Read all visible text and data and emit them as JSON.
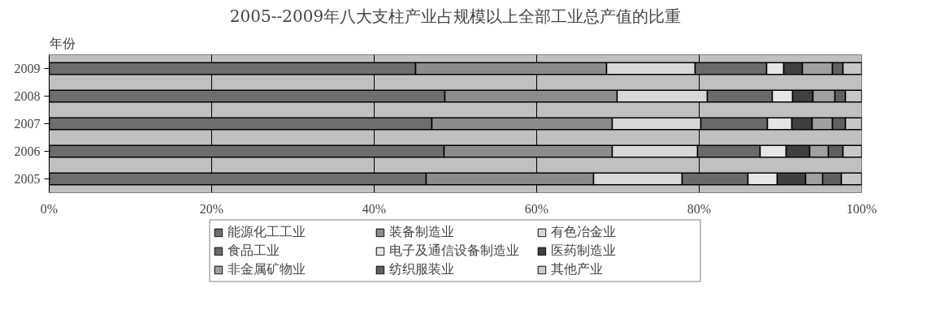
{
  "chart_data": {
    "type": "bar",
    "orientation": "horizontal",
    "stacked": true,
    "title": "2005--2009年八大支柱产业占规模以上全部工业总产值的比重",
    "ylabel": "年份",
    "categories": [
      "2009",
      "2008",
      "2007",
      "2006",
      "2005"
    ],
    "series": [
      {
        "name": "能源化工工业",
        "color": "#6e6e6e",
        "values": [
          45.1,
          48.7,
          47.1,
          48.6,
          46.4
        ]
      },
      {
        "name": "装备制造业",
        "color": "#8c8c8c",
        "values": [
          23.5,
          21.2,
          22.2,
          20.7,
          20.6
        ]
      },
      {
        "name": "有色冶金业",
        "color": "#d8d8d8",
        "values": [
          10.9,
          11.1,
          10.9,
          10.5,
          10.9
        ]
      },
      {
        "name": "食品工业",
        "color": "#6a6a6a",
        "values": [
          8.8,
          8.0,
          8.2,
          7.7,
          8.1
        ]
      },
      {
        "name": "电子及通信设备制造业",
        "color": "#e6e6e6",
        "values": [
          2.1,
          2.5,
          3.0,
          3.2,
          3.6
        ]
      },
      {
        "name": "医药制造业",
        "color": "#404040",
        "values": [
          2.3,
          2.5,
          2.5,
          2.9,
          3.5
        ]
      },
      {
        "name": "非金属矿物业",
        "color": "#a0a0a0",
        "values": [
          3.7,
          2.7,
          2.5,
          2.3,
          2.1
        ]
      },
      {
        "name": "纺织服装业",
        "color": "#606060",
        "values": [
          1.3,
          1.3,
          1.6,
          1.8,
          2.3
        ]
      },
      {
        "name": "其他产业",
        "color": "#c8c8c8",
        "values": [
          2.3,
          2.0,
          2.0,
          2.3,
          2.5
        ]
      }
    ],
    "xlim": [
      0,
      100
    ],
    "xticks": [
      {
        "value": 0,
        "label": "0%"
      },
      {
        "value": 20,
        "label": "20%"
      },
      {
        "value": 40,
        "label": "40%"
      },
      {
        "value": 60,
        "label": "60%"
      },
      {
        "value": 80,
        "label": "80%"
      },
      {
        "value": 100,
        "label": "100%"
      }
    ],
    "grid": "x",
    "legend": "bottom"
  }
}
